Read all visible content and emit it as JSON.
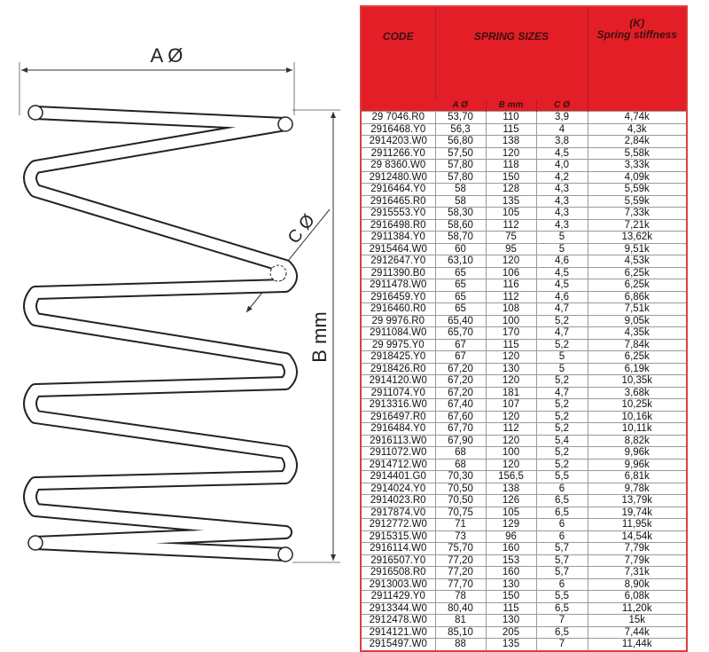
{
  "drawing": {
    "label_a": "A Ø",
    "label_b": "B mm",
    "label_c": "C Ø"
  },
  "table": {
    "header": {
      "code": "CODE",
      "spring_sizes": "SPRING SIZES",
      "k_symbol": "(K)",
      "stiffness": "Spring stiffness",
      "a": "A Ø",
      "b": "B mm",
      "c": "C Ø"
    },
    "rows": [
      [
        "29 7046.R0",
        "53,70",
        "110",
        "3,9",
        "4,74k"
      ],
      [
        "2916468.Y0",
        "56,3",
        "115",
        "4",
        "4,3k"
      ],
      [
        "2914203.W0",
        "56,80",
        "138",
        "3,8",
        "2,84k"
      ],
      [
        "2911266.Y0",
        "57,50",
        "120",
        "4,5",
        "5,58k"
      ],
      [
        "29 8360.W0",
        "57,80",
        "118",
        "4,0",
        "3,33k"
      ],
      [
        "2912480.W0",
        "57,80",
        "150",
        "4,2",
        "4,09k"
      ],
      [
        "2916464.Y0",
        "58",
        "128",
        "4,3",
        "5,59k"
      ],
      [
        "2916465.R0",
        "58",
        "135",
        "4,3",
        "5,59k"
      ],
      [
        "2915553.Y0",
        "58,30",
        "105",
        "4,3",
        "7,33k"
      ],
      [
        "2916498.R0",
        "58,60",
        "112",
        "4,3",
        "7,21k"
      ],
      [
        "2911384.Y0",
        "58,70",
        "75",
        "5",
        "13,62k"
      ],
      [
        "2915464.W0",
        "60",
        "95",
        "5",
        "9,51k"
      ],
      [
        "2912647.Y0",
        "63,10",
        "120",
        "4,6",
        "4,53k"
      ],
      [
        "2911390.B0",
        "65",
        "106",
        "4,5",
        "6,25k"
      ],
      [
        "2911478.W0",
        "65",
        "116",
        "4,5",
        "6,25k"
      ],
      [
        "2916459.Y0",
        "65",
        "112",
        "4,6",
        "6,86k"
      ],
      [
        "2916460.R0",
        "65",
        "108",
        "4,7",
        "7,51k"
      ],
      [
        "29 9976.R0",
        "65,40",
        "100",
        "5,2",
        "9,05k"
      ],
      [
        "2911084.W0",
        "65,70",
        "170",
        "4,7",
        "4,35k"
      ],
      [
        "29 9975.Y0",
        "67",
        "115",
        "5,2",
        "7,84k"
      ],
      [
        "2918425.Y0",
        "67",
        "120",
        "5",
        "6,25k"
      ],
      [
        "2918426.R0",
        "67,20",
        "130",
        "5",
        "6,19k"
      ],
      [
        "2914120.W0",
        "67,20",
        "120",
        "5,2",
        "10,35k"
      ],
      [
        "2911074.Y0",
        "67,20",
        "181",
        "4,7",
        "3,68k"
      ],
      [
        "2913316.W0",
        "67,40",
        "107",
        "5,2",
        "10,25k"
      ],
      [
        "2916497.R0",
        "67,60",
        "120",
        "5,2",
        "10,16k"
      ],
      [
        "2916484.Y0",
        "67,70",
        "112",
        "5,2",
        "10,11k"
      ],
      [
        "2916113.W0",
        "67,90",
        "120",
        "5,4",
        "8,82k"
      ],
      [
        "2911072.W0",
        "68",
        "100",
        "5,2",
        "9,96k"
      ],
      [
        "2914712.W0",
        "68",
        "120",
        "5,2",
        "9,96k"
      ],
      [
        "2914401.G0",
        "70,30",
        "156,5",
        "5,5",
        "6,81k"
      ],
      [
        "2914024.Y0",
        "70,50",
        "138",
        "6",
        "9,78k"
      ],
      [
        "2914023.R0",
        "70,50",
        "126",
        "6,5",
        "13,79k"
      ],
      [
        "2917874.V0",
        "70,75",
        "105",
        "6,5",
        "19,74k"
      ],
      [
        "2912772.W0",
        "71",
        "129",
        "6",
        "11,95k"
      ],
      [
        "2915315.W0",
        "73",
        "96",
        "6",
        "14,54k"
      ],
      [
        "2916114.W0",
        "75,70",
        "160",
        "5,7",
        "7,79k"
      ],
      [
        "2916507.Y0",
        "77,20",
        "153",
        "5,7",
        "7,79k"
      ],
      [
        "2916508.R0",
        "77,20",
        "160",
        "5,7",
        "7,31k"
      ],
      [
        "2913003.W0",
        "77,70",
        "130",
        "6",
        "8,90k"
      ],
      [
        "2911429.Y0",
        "78",
        "150",
        "5,5",
        "6,08k"
      ],
      [
        "2913344.W0",
        "80,40",
        "115",
        "6,5",
        "11,20k"
      ],
      [
        "2912478.W0",
        "81",
        "130",
        "7",
        "15k"
      ],
      [
        "2914121.W0",
        "85,10",
        "205",
        "6,5",
        "7,44k"
      ],
      [
        "2915497.W0",
        "88",
        "135",
        "7",
        "11,44k"
      ]
    ]
  },
  "colors": {
    "header_red": "#e41e26",
    "border_red": "#d9403f"
  }
}
